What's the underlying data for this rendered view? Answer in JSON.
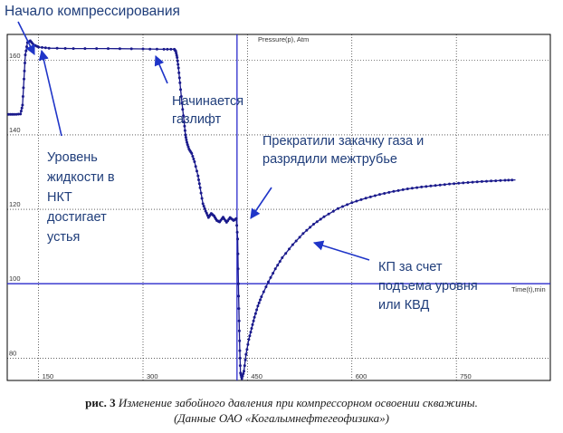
{
  "chart_data": {
    "type": "line",
    "x_axis": {
      "label": "Time(t),min",
      "ticks": [
        150,
        300,
        450,
        600,
        750
      ],
      "range": [
        105,
        885
      ]
    },
    "y_axis": {
      "label": "Pressure(p), Atm",
      "ticks": [
        80,
        100,
        120,
        140,
        160
      ],
      "range": [
        74,
        167
      ]
    },
    "reference_lines": {
      "vertical_x": 435,
      "horizontal_y": 100
    },
    "series": [
      {
        "color": "#1a1a8c",
        "x": [
          107,
          115,
          124,
          127,
          129,
          131,
          134,
          138,
          143,
          150,
          165,
          200,
          250,
          300,
          330,
          345,
          347,
          349,
          351,
          353,
          356,
          359,
          361,
          363,
          366,
          370,
          374,
          379,
          382,
          386,
          390,
          394,
          398,
          402,
          406,
          410,
          415,
          420,
          425,
          430,
          434,
          436,
          437,
          438,
          439,
          440,
          442,
          445,
          448,
          452,
          456,
          460,
          465,
          470,
          480,
          490,
          500,
          515,
          530,
          545,
          560,
          580,
          600,
          620,
          640,
          660,
          680,
          700,
          720,
          740,
          760,
          780,
          800,
          820,
          835
        ],
        "y": [
          145.5,
          145.5,
          145.6,
          148.0,
          155.0,
          161.5,
          164.8,
          165.3,
          164.2,
          163.6,
          163.3,
          163.2,
          163.2,
          163.1,
          163.0,
          163.0,
          162.5,
          160.8,
          158.0,
          154.0,
          148.5,
          143.5,
          140.0,
          138.0,
          136.2,
          135.0,
          132.8,
          129.0,
          125.8,
          121.5,
          119.5,
          117.8,
          118.9,
          118.2,
          117.0,
          116.6,
          117.9,
          116.5,
          117.8,
          117.0,
          117.5,
          112.0,
          100.0,
          90.0,
          82.0,
          76.0,
          74.5,
          76.5,
          81.0,
          85.0,
          88.0,
          91.0,
          94.0,
          96.5,
          100.5,
          104.0,
          107.0,
          110.5,
          113.5,
          116.0,
          118.0,
          120.2,
          121.8,
          123.0,
          124.0,
          124.8,
          125.5,
          126.0,
          126.4,
          126.8,
          127.1,
          127.4,
          127.6,
          127.8,
          127.9
        ]
      }
    ]
  },
  "annotations": {
    "compression_start": "Начало компрессирования",
    "liquid_level": [
      "Уровень",
      "жидкости в",
      "НКТ",
      "достигает",
      "устья"
    ],
    "gaslift": [
      "Начинается",
      "газлифт"
    ],
    "stop_injection": [
      "Прекратили закачку газа и",
      "разрядили межтрубье"
    ],
    "kp_recovery": [
      "КП за счет",
      "подъема уровня",
      "или КВД"
    ]
  },
  "caption": {
    "figure_label": "рис. 3",
    "text_line1": "Изменение забойного давления при компрессорном освоении скважины.",
    "text_line2": "(Данные ОАО «Когалымнефтегеофизика»)"
  },
  "colors": {
    "curve": "#1a1a8c",
    "reference_line": "#2b2bcc",
    "annotation_text": "#1f3d7a",
    "arrow": "#1f35c8",
    "grid": "#000000",
    "axis_text": "#333333"
  }
}
